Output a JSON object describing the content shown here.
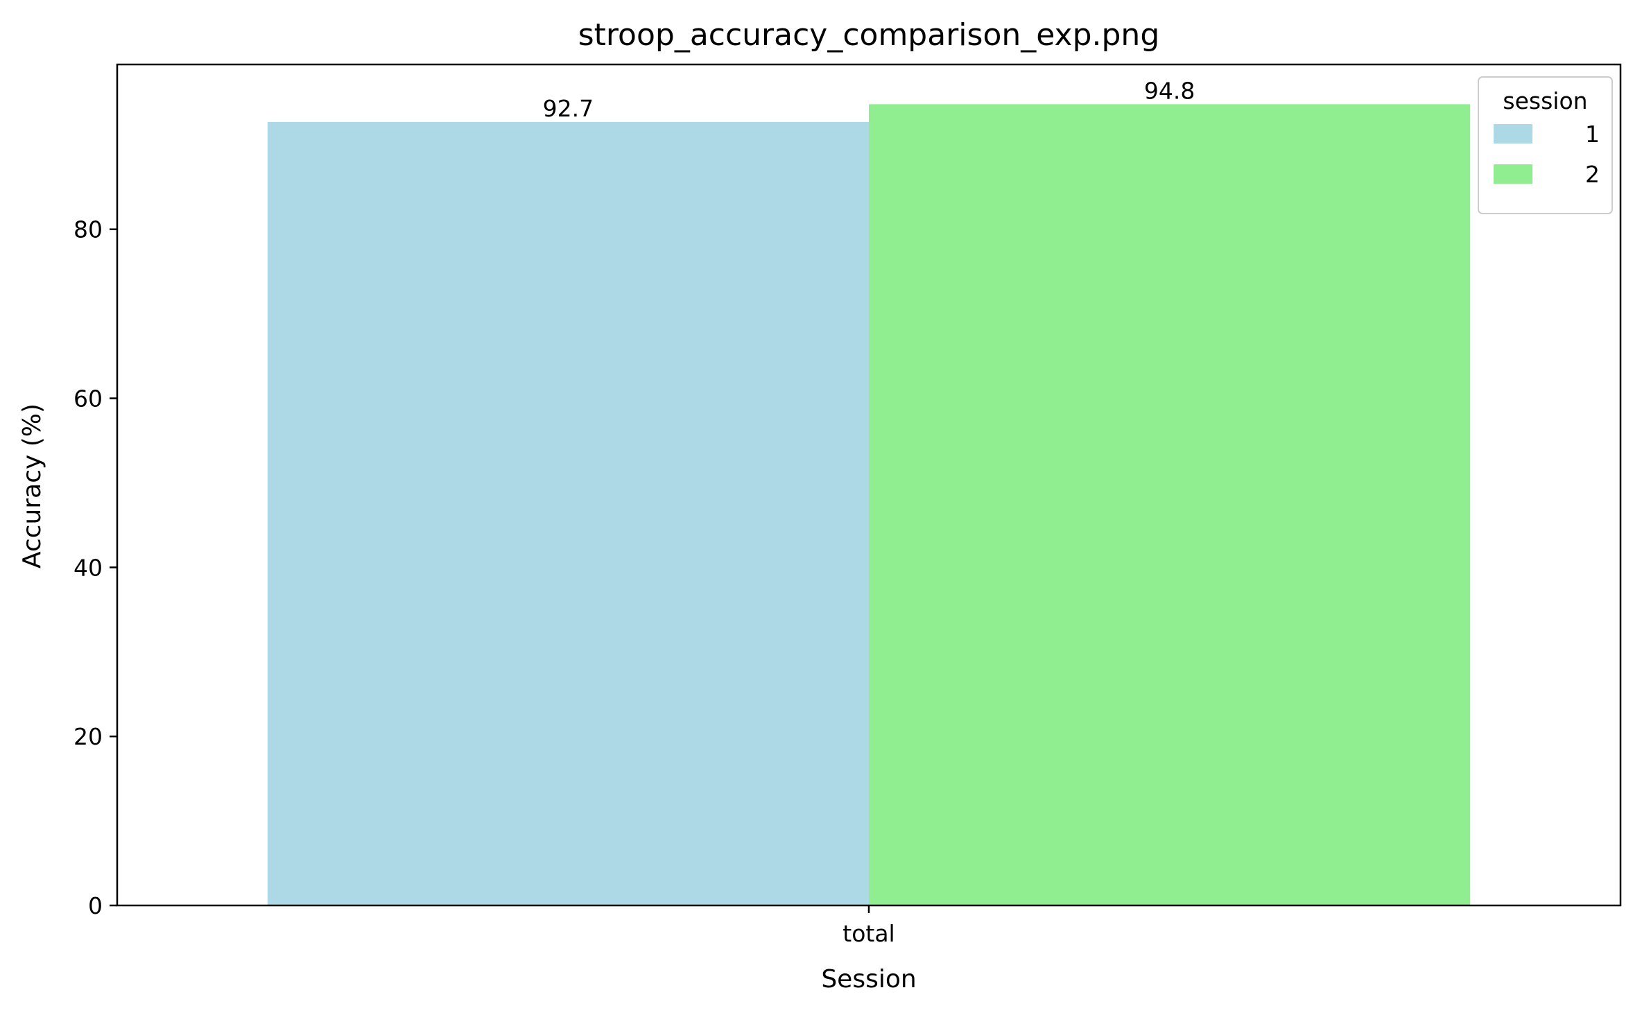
{
  "chart_data": {
    "type": "bar",
    "title": "stroop_accuracy_comparison_exp.png",
    "xlabel": "Session",
    "ylabel": "Accuracy (%)",
    "categories": [
      "total"
    ],
    "series": [
      {
        "name": "1",
        "color": "#add8e6",
        "values": [
          92.7
        ]
      },
      {
        "name": "2",
        "color": "#90ee90",
        "values": [
          94.8
        ]
      }
    ],
    "data_labels": [
      "92.7",
      "94.8"
    ],
    "yticks": [
      0,
      20,
      40,
      60,
      80
    ],
    "ylim": [
      0,
      99.5
    ],
    "grid": false,
    "legend": {
      "title": "session",
      "placement": "top-right",
      "entries": [
        "1",
        "2"
      ]
    }
  }
}
